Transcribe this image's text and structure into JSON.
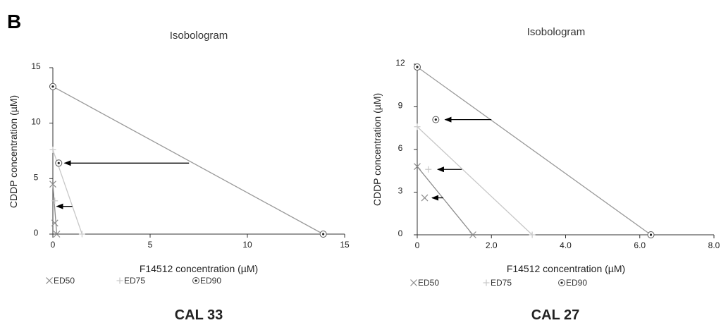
{
  "panel_letter": "B",
  "colors": {
    "ED50": "#8c8c8c",
    "ED75": "#c8c8c8",
    "ED90": "#9a9a9a",
    "axis": "#333333",
    "arrow": "#000000"
  },
  "chart_data": [
    {
      "type": "scatter",
      "title": "Isobologram",
      "caption": "CAL 33",
      "xlabel": "F14512 concentration (µM)",
      "ylabel": "CDDP concentration (µM)",
      "xlim": [
        0,
        15
      ],
      "ylim": [
        0,
        15
      ],
      "xticks": [
        0,
        5,
        10,
        15
      ],
      "xtick_labels": [
        "0",
        "5",
        "10",
        "15"
      ],
      "yticks": [
        0,
        5,
        10,
        15
      ],
      "ytick_labels": [
        "0",
        "5",
        "10",
        "15"
      ],
      "legend": [
        "ED50",
        "ED75",
        "ED90"
      ],
      "legend_position": "bottom-left",
      "series": [
        {
          "name": "ED50",
          "line": [
            [
              0,
              4.5
            ],
            [
              0.2,
              0
            ]
          ],
          "combination_point": [
            0.1,
            1.0
          ]
        },
        {
          "name": "ED75",
          "line": [
            [
              0,
              7.6
            ],
            [
              1.5,
              0
            ]
          ],
          "combination_point": [
            0.1,
            3.0
          ]
        },
        {
          "name": "ED90",
          "line": [
            [
              0,
              13.3
            ],
            [
              13.9,
              0
            ]
          ],
          "combination_point": [
            0.3,
            6.4
          ]
        }
      ],
      "arrows": [
        {
          "from": [
            7,
            6.4
          ],
          "to": [
            0.6,
            6.4
          ]
        },
        {
          "from": [
            1.0,
            2.5
          ],
          "to": [
            0.2,
            2.5
          ]
        }
      ]
    },
    {
      "type": "scatter",
      "title": "Isobologram",
      "caption": "CAL 27",
      "xlabel": "F14512 concentration (µM)",
      "ylabel": "CDDP concentration (µM)",
      "xlim": [
        0,
        8
      ],
      "ylim": [
        0,
        12
      ],
      "xticks": [
        0,
        2,
        4,
        6,
        8
      ],
      "xtick_labels": [
        "0",
        "2.0",
        "4.0",
        "6.0",
        "8.0"
      ],
      "yticks": [
        0,
        3,
        6,
        9,
        12
      ],
      "ytick_labels": [
        "0",
        "3",
        "6",
        "9",
        "12"
      ],
      "legend": [
        "ED50",
        "ED75",
        "ED90"
      ],
      "legend_position": "bottom-left",
      "series": [
        {
          "name": "ED50",
          "line": [
            [
              0,
              4.8
            ],
            [
              1.5,
              0
            ]
          ],
          "combination_point": [
            0.2,
            2.6
          ]
        },
        {
          "name": "ED75",
          "line": [
            [
              0,
              7.6
            ],
            [
              3.1,
              0
            ]
          ],
          "combination_point": [
            0.3,
            4.6
          ]
        },
        {
          "name": "ED90",
          "line": [
            [
              0,
              11.8
            ],
            [
              6.3,
              0
            ]
          ],
          "combination_point": [
            0.5,
            8.1
          ]
        }
      ],
      "arrows": [
        {
          "from": [
            2.0,
            8.1
          ],
          "to": [
            0.75,
            8.1
          ]
        },
        {
          "from": [
            1.2,
            4.6
          ],
          "to": [
            0.55,
            4.6
          ]
        },
        {
          "from": [
            0.7,
            2.6
          ],
          "to": [
            0.4,
            2.6
          ]
        }
      ]
    }
  ]
}
